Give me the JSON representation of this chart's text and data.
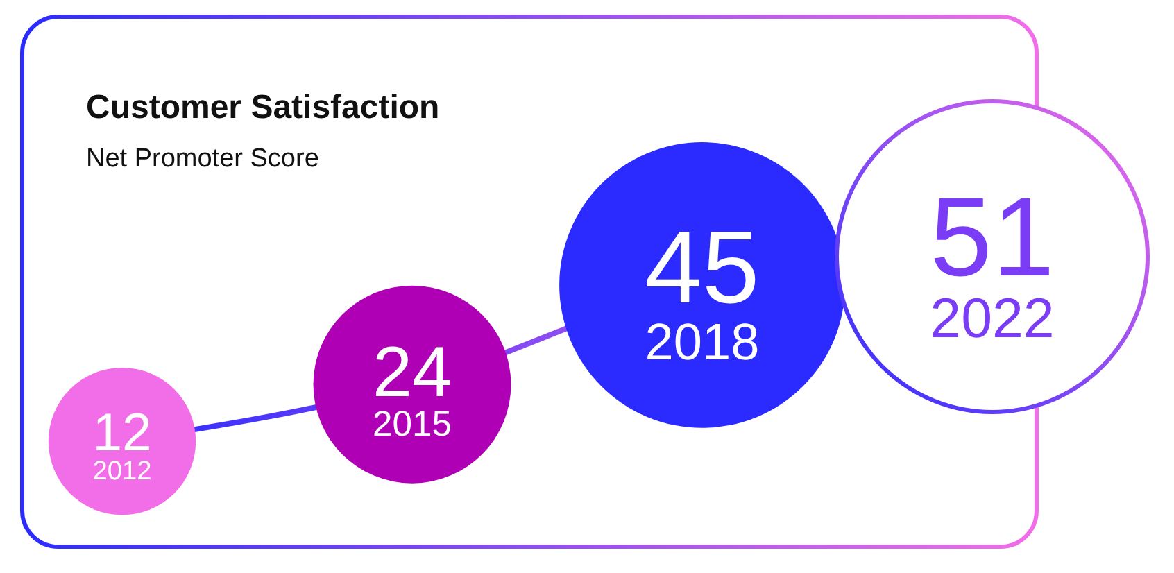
{
  "chart_data": {
    "type": "other",
    "title": "Customer Satisfaction",
    "subtitle": "Net Promoter Score",
    "categories": [
      "2012",
      "2015",
      "2018",
      "2022"
    ],
    "values": [
      12,
      24,
      45,
      51
    ],
    "colors": [
      "#f26ee8",
      "#b000b5",
      "#2b2bff",
      "#ffffff"
    ],
    "data_labels": true
  }
}
